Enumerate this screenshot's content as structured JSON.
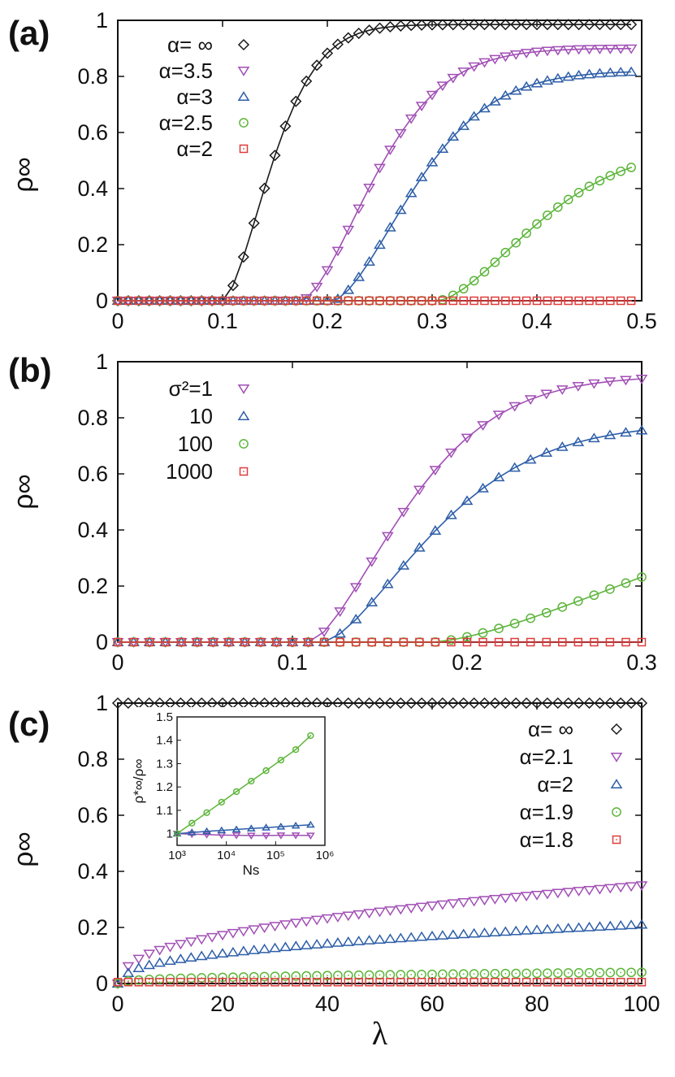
{
  "figure": {
    "xlabel": "λ"
  },
  "chart_data": [
    {
      "panel": "(a)",
      "type": "scatter",
      "xlim": [
        0,
        0.5
      ],
      "ylim": [
        0,
        1
      ],
      "xticks": [
        "0",
        "0.1",
        "0.2",
        "0.3",
        "0.4",
        "0.5"
      ],
      "yticks": [
        "0",
        "0.2",
        "0.4",
        "0.6",
        "0.8",
        "1"
      ],
      "ylabel": "ρ∞",
      "ylabel_sub": "∞",
      "xlabel": "",
      "series": [
        {
          "name": "α= ∞",
          "marker": "diamond",
          "color": "#1a1a1a",
          "threshold": 0.1,
          "ymax": 0.985,
          "tau": 0.06,
          "k": 1.6,
          "xstart": 0,
          "xend": 0.49,
          "n": 50,
          "line": true
        },
        {
          "name": "α=3.5",
          "marker": "tri-down",
          "color": "#a14fb5",
          "threshold": 0.175,
          "ymax": 0.9,
          "tau": 0.09,
          "k": 1.6,
          "xstart": 0,
          "xend": 0.49,
          "n": 50,
          "line": true
        },
        {
          "name": "α=3",
          "marker": "tri-up",
          "color": "#2d5ea8",
          "threshold": 0.205,
          "ymax": 0.82,
          "tau": 0.1,
          "k": 1.6,
          "xstart": 0,
          "xend": 0.49,
          "n": 50,
          "line": true
        },
        {
          "name": "α=2.5",
          "marker": "circle",
          "color": "#5cb53a",
          "threshold": 0.305,
          "ymax": 0.55,
          "tau": 0.12,
          "k": 1.6,
          "xstart": 0,
          "xend": 0.49,
          "n": 50,
          "line": true
        },
        {
          "name": "α=2",
          "marker": "square",
          "color": "#e03b3b",
          "threshold": 1.0,
          "ymax": 0.01,
          "tau": 0.1,
          "k": 1.6,
          "xstart": 0,
          "xend": 0.49,
          "n": 50,
          "line": true
        }
      ]
    },
    {
      "panel": "(b)",
      "type": "scatter",
      "xlim": [
        0,
        0.3
      ],
      "ylim": [
        0,
        1
      ],
      "xticks": [
        "0",
        "0.1",
        "0.2",
        "0.3"
      ],
      "yticks": [
        "0",
        "0.2",
        "0.4",
        "0.6",
        "0.8",
        "1"
      ],
      "ylabel": "ρ∞",
      "ylabel_sub": "∞",
      "xlabel": "",
      "legend_title": "σ²=1",
      "series": [
        {
          "name": "σ²=1",
          "marker": "tri-down",
          "color": "#a14fb5",
          "threshold": 0.11,
          "ymax": 0.95,
          "tau": 0.07,
          "k": 1.5,
          "xstart": 0,
          "xend": 0.3,
          "n": 34,
          "line": true
        },
        {
          "name": "10",
          "marker": "tri-up",
          "color": "#2d5ea8",
          "threshold": 0.118,
          "ymax": 0.78,
          "tau": 0.08,
          "k": 1.5,
          "xstart": 0,
          "xend": 0.3,
          "n": 34,
          "line": true
        },
        {
          "name": "100",
          "marker": "circle",
          "color": "#5cb53a",
          "threshold": 0.18,
          "ymax": 0.7,
          "tau": 0.22,
          "k": 1.5,
          "xstart": 0,
          "xend": 0.3,
          "n": 34,
          "line": true
        },
        {
          "name": "1000",
          "marker": "square",
          "color": "#e03b3b",
          "threshold": 1.0,
          "ymax": 0.01,
          "tau": 0.1,
          "k": 1.5,
          "xstart": 0,
          "xend": 0.3,
          "n": 34,
          "line": true
        }
      ]
    },
    {
      "panel": "(c)",
      "type": "scatter",
      "xlim": [
        0,
        100
      ],
      "ylim": [
        0,
        1
      ],
      "xticks": [
        "0",
        "20",
        "40",
        "60",
        "80",
        "100"
      ],
      "yticks": [
        "0",
        "0.2",
        "0.4",
        "0.6",
        "0.8",
        "1"
      ],
      "ylabel": "ρ∞",
      "ylabel_sub": "∞",
      "xlabel": "λ",
      "series": [
        {
          "name": "α= ∞",
          "marker": "diamond",
          "color": "#1a1a1a",
          "kind": "const",
          "value": 1.0,
          "xstart": 0,
          "xend": 100,
          "n": 51,
          "line": false
        },
        {
          "name": "α=2.1",
          "marker": "tri-down",
          "color": "#a14fb5",
          "kind": "power",
          "a": 0.03,
          "b": 0.6,
          "c": 0.32,
          "p": 0.5,
          "xstart": 0,
          "xend": 100,
          "n": 51,
          "line": false
        },
        {
          "name": "α=2",
          "marker": "tri-up",
          "color": "#2d5ea8",
          "kind": "power",
          "a": 0.01,
          "b": 0.8,
          "c": 0.2,
          "p": 0.45,
          "xstart": 0,
          "xend": 100,
          "n": 51,
          "line": false
        },
        {
          "name": "α=1.9",
          "marker": "circle",
          "color": "#5cb53a",
          "kind": "power",
          "a": 0.005,
          "b": 0.6,
          "c": 0.035,
          "p": 0.45,
          "xstart": 0,
          "xend": 100,
          "n": 51,
          "line": false
        },
        {
          "name": "α=1.8",
          "marker": "square",
          "color": "#e03b3b",
          "kind": "const",
          "value": 0.005,
          "xstart": 0,
          "xend": 100,
          "n": 51,
          "line": false
        }
      ],
      "inset": {
        "xscale": "log",
        "xlim_exp": [
          3,
          6
        ],
        "ylim": [
          0.95,
          1.5
        ],
        "xticks": [
          "10³",
          "10⁴",
          "10⁵",
          "10⁶"
        ],
        "yticks": [
          "1",
          "1.1",
          "1.2",
          "1.3",
          "1.4",
          "1.5"
        ],
        "xlabel": "Ns",
        "ylabel": "ρ*∞/ρ∞",
        "x": [
          1000,
          2000,
          4000,
          8000,
          16000,
          32000,
          64000,
          128000,
          256000,
          512000
        ],
        "series": [
          {
            "name": "α=2.1",
            "marker": "tri-down",
            "color": "#a14fb5",
            "values": [
              1.0,
              0.998,
              0.996,
              0.994,
              0.993,
              0.992,
              0.992,
              0.993,
              0.993,
              0.992
            ]
          },
          {
            "name": "α=2",
            "marker": "tri-up",
            "color": "#2d5ea8",
            "values": [
              1.0,
              1.005,
              1.01,
              1.014,
              1.018,
              1.022,
              1.026,
              1.03,
              1.034,
              1.038
            ]
          },
          {
            "name": "α=1.9",
            "marker": "circle",
            "color": "#5cb53a",
            "values": [
              1.0,
              1.045,
              1.09,
              1.135,
              1.18,
              1.225,
              1.27,
              1.315,
              1.36,
              1.42
            ]
          }
        ]
      }
    }
  ]
}
